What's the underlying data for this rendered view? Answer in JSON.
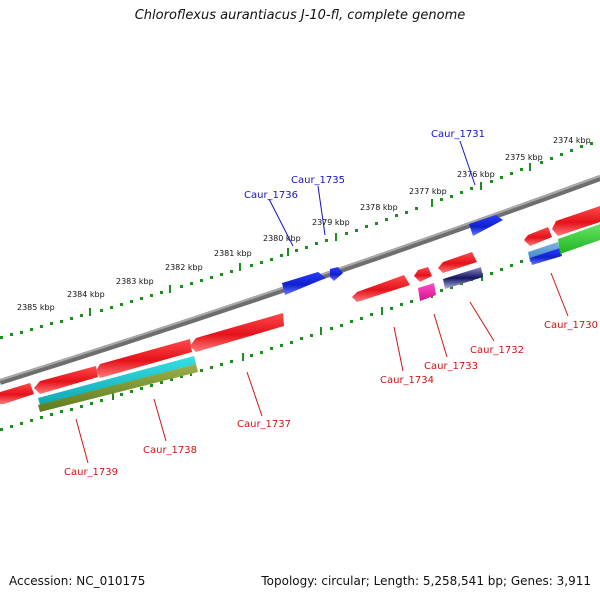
{
  "title": "Chloroflexus aurantiacus J-10-fl, complete genome",
  "accession": "Accession: NC_010175",
  "summary": "Topology: circular; Length: 5,258,541 bp; Genes: 3,911",
  "colors": {
    "backbone": "#8a8a8a",
    "tick": "#1e8c1e",
    "forward_label": "#1414c8",
    "reverse_label": "#d21414",
    "red_feature": "#e6141e",
    "blue_feature": "#1428d2"
  },
  "scale_labels": [
    "2374 kbp",
    "2375 kbp",
    "2376 kbp",
    "2377 kbp",
    "2378 kbp",
    "2379 kbp",
    "2380 kbp",
    "2381 kbp",
    "2382 kbp",
    "2383 kbp",
    "2384 kbp",
    "2385 kbp"
  ],
  "forward_labels": [
    "Caur_1731",
    "Caur_1735",
    "Caur_1736"
  ],
  "reverse_labels": [
    "Caur_1730",
    "Caur_1732",
    "Caur_1733",
    "Caur_1734",
    "Caur_1737",
    "Caur_1738",
    "Caur_1739"
  ]
}
